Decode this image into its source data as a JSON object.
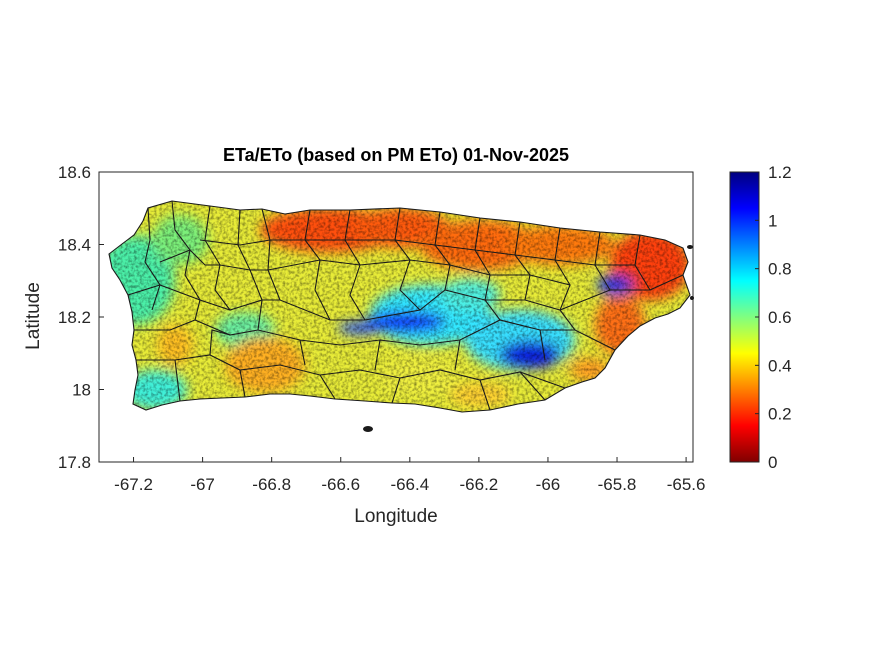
{
  "title": "ETa/ETo (based on PM ETo) 01-Nov-2025",
  "xlabel": "Longitude",
  "ylabel": "Latitude",
  "x_axis": {
    "range": [
      -67.3,
      -65.58
    ],
    "ticks": [
      -67.2,
      -67,
      -66.8,
      -66.6,
      -66.4,
      -66.2,
      -66,
      -65.8,
      -65.6
    ],
    "tick_labels": [
      "-67.2",
      "-67",
      "-66.8",
      "-66.6",
      "-66.4",
      "-66.2",
      "-66",
      "-65.8",
      "-65.6"
    ]
  },
  "y_axis": {
    "range": [
      17.8,
      18.6
    ],
    "ticks": [
      17.8,
      18,
      18.2,
      18.4,
      18.6
    ],
    "tick_labels": [
      "17.8",
      "18",
      "18.2",
      "18.4",
      "18.6"
    ]
  },
  "colorbar": {
    "range": [
      0,
      1.2
    ],
    "ticks": [
      0,
      0.2,
      0.4,
      0.6,
      0.8,
      1,
      1.2
    ],
    "tick_labels": [
      "0",
      "0.2",
      "0.4",
      "0.6",
      "0.8",
      "1",
      "1.2"
    ],
    "colormap": "jet (reversed)",
    "colors": [
      "#800000",
      "#ff0000",
      "#ff8000",
      "#ffff00",
      "#80ff80",
      "#00ffff",
      "#0080ff",
      "#0000ff",
      "#000080"
    ]
  },
  "map": {
    "region": "Puerto Rico",
    "boundaries": "municipality",
    "background": "#ffffff",
    "boundary_color": "#1a1a1a"
  }
}
